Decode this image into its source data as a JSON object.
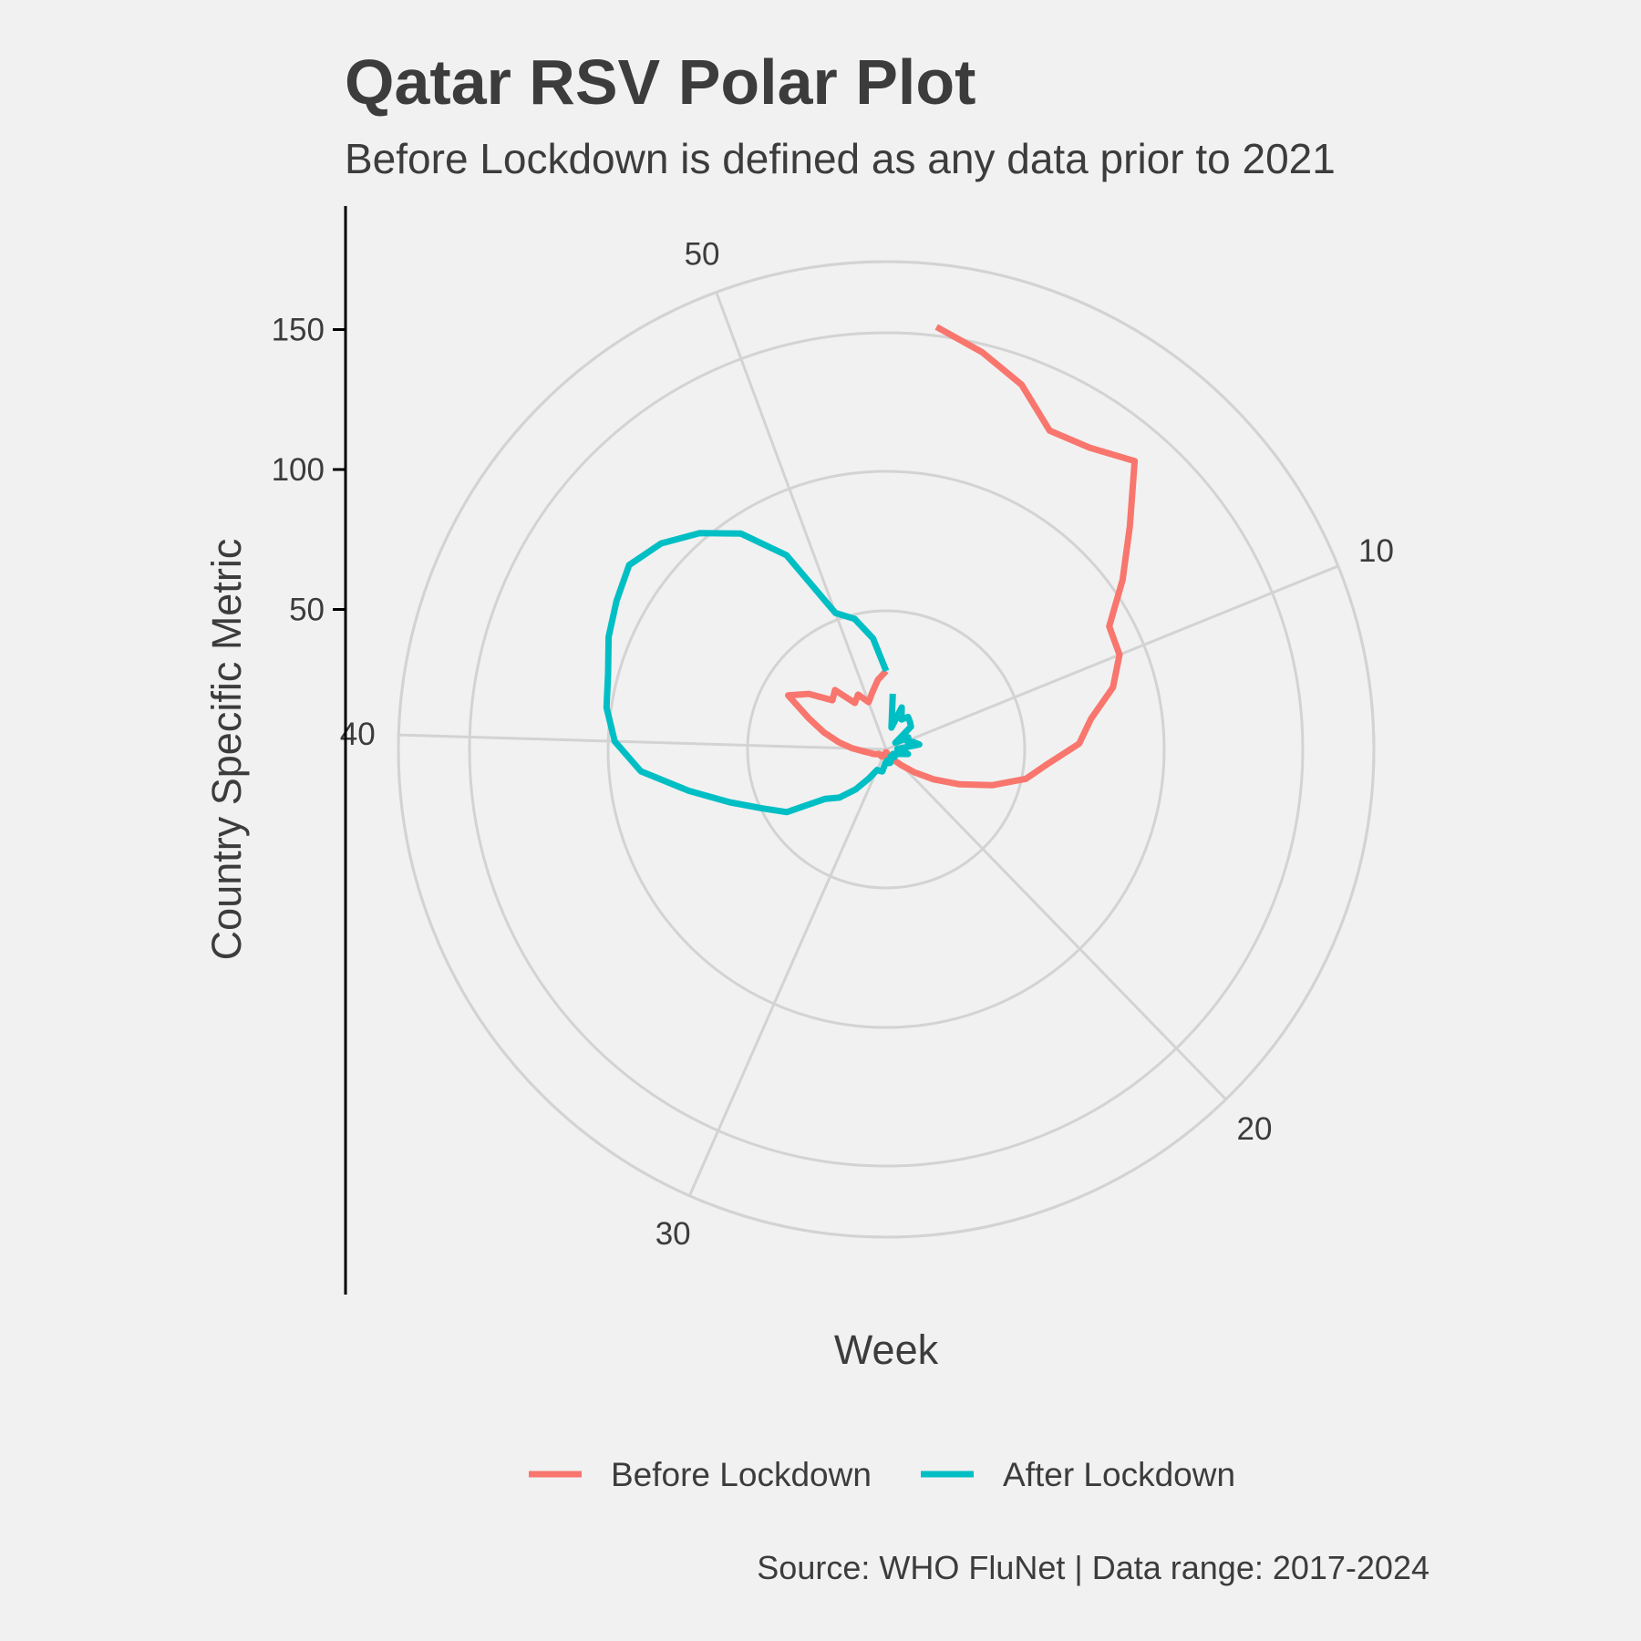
{
  "chart_data": {
    "type": "line",
    "coord": "polar",
    "title": "Qatar RSV Polar Plot",
    "subtitle": "Before Lockdown is defined as any data prior to 2021",
    "xlabel": "Week",
    "ylabel": "Country Specific Metric",
    "caption": "Source: WHO FluNet | Data range: 2017-2024",
    "x_ticks": [
      10,
      20,
      30,
      40,
      50
    ],
    "y_ticks": [
      50,
      100,
      150
    ],
    "grid": true,
    "legend_position": "bottom",
    "series": [
      {
        "name": "Before Lockdown",
        "color": "#F8766D",
        "x": [
          1,
          2,
          3,
          4,
          5,
          6,
          7,
          8,
          9,
          10,
          11,
          12,
          13,
          14,
          15,
          16,
          17,
          18,
          19,
          20,
          21,
          22,
          23,
          24,
          25,
          26,
          27,
          28,
          29,
          30,
          31,
          32,
          33,
          34,
          35,
          36,
          37,
          38,
          39,
          40,
          41,
          42,
          43,
          44,
          45,
          46,
          47,
          48,
          49,
          50,
          51,
          52,
          53
        ],
        "y": [
          152,
          146,
          139,
          128,
          130,
          136,
          118,
          104,
          91,
          90,
          84,
          74,
          69,
          58,
          51,
          40,
          29,
          20,
          13,
          8,
          5,
          3,
          2,
          2,
          2,
          1,
          1,
          2,
          2,
          2,
          3,
          3,
          3,
          3,
          3,
          4,
          5,
          6,
          8,
          12,
          17,
          23,
          30,
          40,
          34,
          26,
          28,
          20,
          22,
          18,
          21,
          25,
          28
        ]
      },
      {
        "name": "After Lockdown",
        "color": "#00BFC4",
        "x": [
          1,
          2,
          3,
          4,
          5,
          6,
          7,
          8,
          9,
          10,
          11,
          12,
          13,
          14,
          15,
          16,
          17,
          18,
          19,
          20,
          21,
          22,
          23,
          24,
          25,
          26,
          27,
          28,
          29,
          30,
          31,
          32,
          33,
          34,
          35,
          36,
          37,
          38,
          39,
          40,
          41,
          42,
          43,
          44,
          45,
          46,
          47,
          48,
          49,
          50,
          51,
          52,
          53
        ],
        "y": [
          20,
          8,
          16,
          12,
          14,
          13,
          12,
          4,
          9,
          8,
          10,
          12,
          4,
          6,
          8,
          5,
          4,
          3,
          4,
          4,
          3,
          3,
          4,
          5,
          5,
          4,
          5,
          8,
          8,
          8,
          12,
          18,
          24,
          28,
          42,
          49,
          59,
          72,
          88,
          97,
          101,
          103,
          107,
          110,
          113,
          109,
          102,
          93,
          78,
          52,
          48,
          40,
          28
        ]
      }
    ]
  }
}
